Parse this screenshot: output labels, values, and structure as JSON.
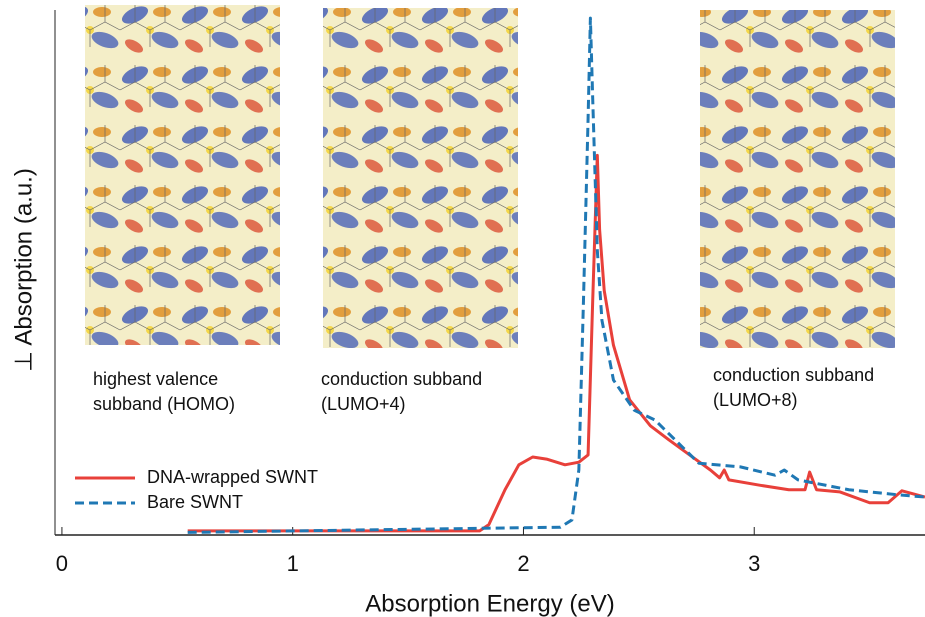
{
  "chart_data": {
    "type": "line",
    "xlabel": "Absorption Energy  (eV)",
    "ylabel": "⊥ Absorption (a.u.)",
    "xlim": [
      -0.03,
      3.74
    ],
    "ylim": [
      0,
      1
    ],
    "xticks": [
      0,
      1,
      2,
      3
    ],
    "legend": "lower-left",
    "series": [
      {
        "name": "DNA-wrapped SWNT",
        "color": "#e8403a",
        "dashed": false,
        "x": [
          0.545,
          1.81,
          1.85,
          1.92,
          1.98,
          2.04,
          2.1,
          2.18,
          2.24,
          2.28,
          2.3,
          2.32,
          2.33,
          2.35,
          2.39,
          2.46,
          2.55,
          2.63,
          2.72,
          2.81,
          2.85,
          2.87,
          2.89,
          3.02,
          3.15,
          3.22,
          3.24,
          3.27,
          3.37,
          3.5,
          3.58,
          3.64,
          3.74
        ],
        "values": [
          0.008,
          0.008,
          0.02,
          0.087,
          0.135,
          0.15,
          0.146,
          0.135,
          0.14,
          0.154,
          0.45,
          0.73,
          0.587,
          0.47,
          0.365,
          0.26,
          0.21,
          0.183,
          0.154,
          0.125,
          0.11,
          0.125,
          0.106,
          0.096,
          0.087,
          0.087,
          0.121,
          0.087,
          0.083,
          0.062,
          0.062,
          0.085,
          0.073
        ]
      },
      {
        "name": "Bare SWNT",
        "color": "#1f78b4",
        "dashed": true,
        "x": [
          0.545,
          2.16,
          2.21,
          2.24,
          2.26,
          2.28,
          2.29,
          2.3,
          2.32,
          2.34,
          2.39,
          2.48,
          2.57,
          2.68,
          2.76,
          2.94,
          3.09,
          3.13,
          3.19,
          3.41,
          3.63,
          3.74
        ],
        "values": [
          0.005,
          0.015,
          0.029,
          0.125,
          0.45,
          0.8,
          0.994,
          0.84,
          0.548,
          0.413,
          0.298,
          0.24,
          0.221,
          0.173,
          0.138,
          0.131,
          0.115,
          0.125,
          0.106,
          0.087,
          0.077,
          0.073
        ]
      }
    ],
    "insets": [
      {
        "lines": [
          "highest valence",
          "subband (HOMO)"
        ]
      },
      {
        "lines": [
          "conduction subband",
          "(LUMO+4)"
        ]
      },
      {
        "lines": [
          "conduction subband",
          "(LUMO+8)"
        ]
      }
    ]
  }
}
